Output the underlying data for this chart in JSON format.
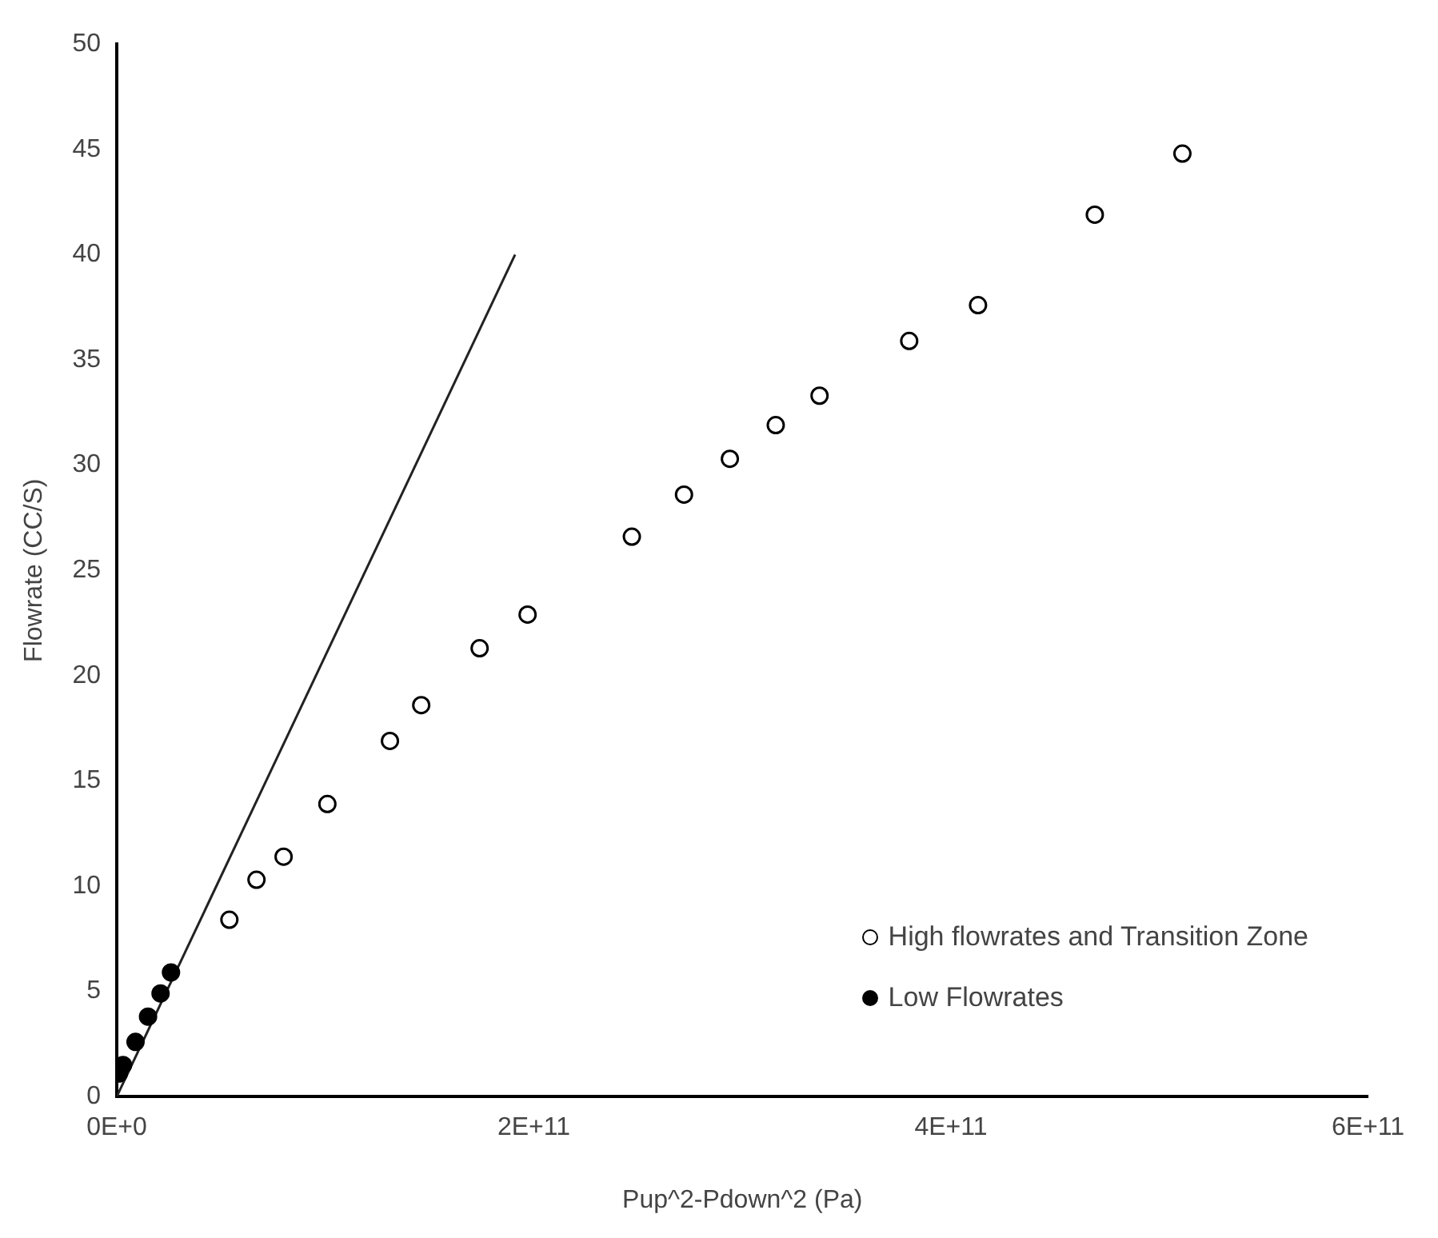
{
  "chart_data": {
    "type": "scatter",
    "xlabel": "Pup^2-Pdown^2 (Pa)",
    "ylabel": "Flowrate (CC/S)",
    "xlim": [
      0,
      600000000000
    ],
    "xticks": [
      {
        "value": 0,
        "label": "0E+0"
      },
      {
        "value": 200000000000,
        "label": "2E+11"
      },
      {
        "value": 400000000000,
        "label": "4E+11"
      },
      {
        "value": 600000000000,
        "label": "6E+11"
      }
    ],
    "ylim": [
      0,
      50
    ],
    "yticks": [
      0,
      5,
      10,
      15,
      20,
      25,
      30,
      35,
      40,
      45,
      50
    ],
    "grid": false,
    "legend": "bottom right",
    "marker": "circle",
    "series": [
      {
        "name": "High flowrates and Transition Zone",
        "color": "#ffffff",
        "x": [
          54000000000,
          67000000000,
          80000000000,
          101000000000,
          131000000000,
          146000000000,
          174000000000,
          197000000000,
          247000000000,
          272000000000,
          294000000000,
          316000000000,
          337000000000,
          380000000000,
          413000000000,
          469000000000,
          511000000000
        ],
        "values": [
          8.4,
          10.3,
          11.4,
          13.9,
          16.9,
          18.6,
          21.3,
          22.9,
          26.6,
          28.6,
          30.3,
          31.9,
          33.3,
          35.9,
          37.6,
          41.9,
          44.8
        ]
      },
      {
        "name": "Low Flowrates",
        "color": "#000000",
        "x": [
          1000000000,
          3000000000,
          9000000000,
          15000000000,
          21000000000,
          26000000000
        ],
        "values": [
          1.1,
          1.5,
          2.6,
          3.8,
          4.9,
          5.9
        ]
      },
      {
        "type": "line",
        "color": "#222222",
        "marker": "none",
        "x": [
          0,
          191000000000
        ],
        "values": [
          0,
          40
        ]
      }
    ]
  }
}
